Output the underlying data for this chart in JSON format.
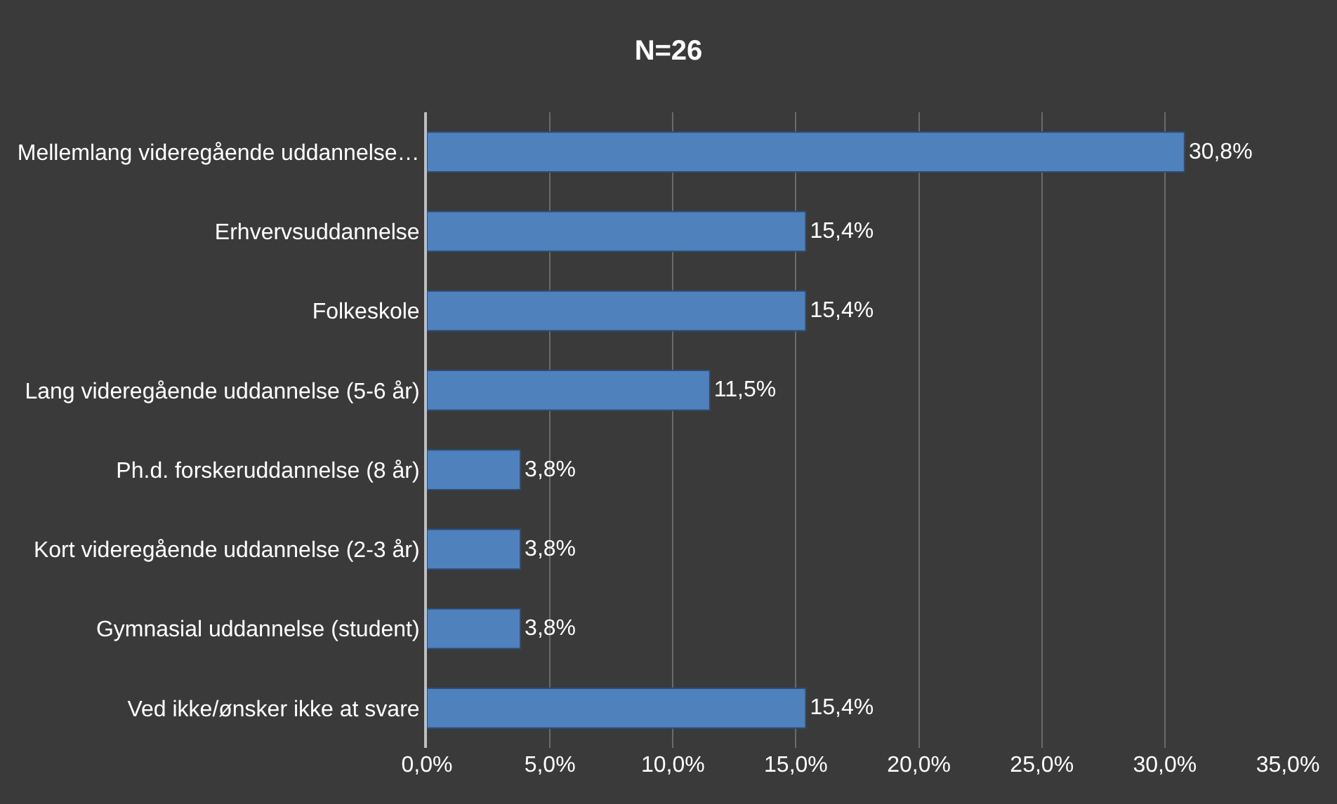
{
  "chart_data": {
    "type": "bar",
    "orientation": "horizontal",
    "title": "N=26",
    "categories": [
      "Mellemlang videregående uddannelse…",
      "Erhvervsuddannelse",
      "Folkeskole",
      "Lang videregående uddannelse (5-6 år)",
      "Ph.d. forskeruddannelse (8 år)",
      "Kort videregående uddannelse (2-3 år)",
      "Gymnasial uddannelse (student)",
      "Ved ikke/ønsker ikke at svare"
    ],
    "values": [
      30.8,
      15.4,
      15.4,
      11.5,
      3.8,
      3.8,
      3.8,
      15.4
    ],
    "value_labels": [
      "30,8%",
      "15,4%",
      "15,4%",
      "11,5%",
      "3,8%",
      "3,8%",
      "3,8%",
      "15,4%"
    ],
    "color": "#4f81bd",
    "xlim": [
      0,
      35
    ],
    "xticks": [
      {
        "value": 0,
        "label": "0,0%"
      },
      {
        "value": 5,
        "label": "5,0%"
      },
      {
        "value": 10,
        "label": "10,0%"
      },
      {
        "value": 15,
        "label": "15,0%"
      },
      {
        "value": 20,
        "label": "20,0%"
      },
      {
        "value": 25,
        "label": "25,0%"
      },
      {
        "value": 30,
        "label": "30,0%"
      },
      {
        "value": 35,
        "label": "35,0%"
      }
    ],
    "grid": "x"
  }
}
